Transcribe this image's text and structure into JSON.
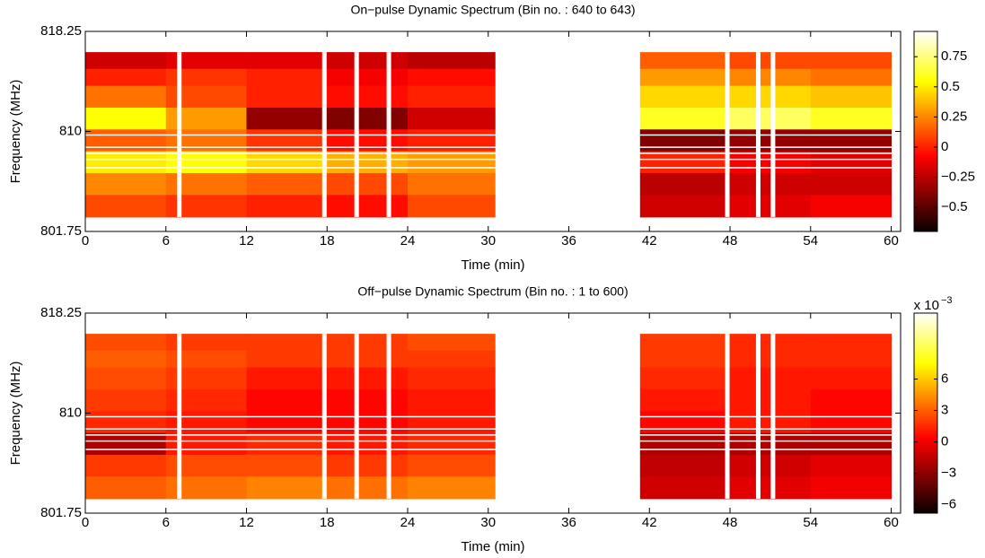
{
  "chart_data": [
    {
      "type": "heatmap",
      "title": "On−pulse Dynamic Spectrum (Bin no. : 640 to 643)",
      "xlabel": "Time (min)",
      "ylabel": "Frequency (MHz)",
      "xlim": [
        0,
        60.7
      ],
      "xticks": [
        0,
        6,
        12,
        18,
        24,
        30,
        36,
        42,
        48,
        54,
        60
      ],
      "ylim": [
        801.75,
        818.25
      ],
      "yticks": [
        801.75,
        810,
        818.25
      ],
      "x_edges": [
        0,
        6,
        12,
        18,
        24,
        30.5,
        41.3,
        48,
        54,
        60
      ],
      "y_edges": [
        802.94,
        804.8,
        806.6,
        808.4,
        810.2,
        812,
        813.8,
        815.2,
        816.54
      ],
      "z": [
        [
          0.1,
          0.05,
          0.0,
          -0.05,
          0.1,
          null,
          -0.2,
          -0.15,
          -0.1
        ],
        [
          0.25,
          0.2,
          0.15,
          0.1,
          0.2,
          null,
          -0.25,
          -0.2,
          -0.2
        ],
        [
          0.5,
          0.55,
          0.45,
          0.35,
          0.3,
          null,
          0.0,
          -0.1,
          -0.15
        ],
        [
          0.15,
          0.2,
          0.05,
          -0.05,
          0.0,
          null,
          -0.4,
          -0.35,
          -0.35
        ],
        [
          0.55,
          0.3,
          -0.35,
          -0.4,
          -0.2,
          null,
          0.6,
          0.7,
          0.6
        ],
        [
          0.2,
          0.1,
          0.0,
          -0.05,
          0.0,
          null,
          0.45,
          0.45,
          0.4
        ],
        [
          0.0,
          0.05,
          0.0,
          -0.1,
          -0.05,
          null,
          0.3,
          0.25,
          0.2
        ],
        [
          -0.2,
          -0.15,
          -0.15,
          -0.2,
          -0.25,
          null,
          0.15,
          0.1,
          0.1
        ]
      ],
      "flagged_times": [
        7.0,
        17.8,
        20.2,
        22.6,
        47.8,
        50.1,
        51.2
      ],
      "flagged_freqs": [
        809.7,
        808.7,
        808.2,
        807.7,
        807.0
      ],
      "colormap": "hot",
      "clim": [
        -0.7,
        0.96
      ],
      "cticks": [
        {
          "value": -0.5,
          "label": "−0.5"
        },
        {
          "value": -0.25,
          "label": "−0.25"
        },
        0,
        0.25,
        0.5,
        0.75
      ]
    },
    {
      "type": "heatmap",
      "title": "Off−pulse Dynamic Spectrum (Bin no. : 1 to 600)",
      "xlabel": "Time (min)",
      "ylabel": "Frequency (MHz)",
      "xlim": [
        0,
        60.7
      ],
      "xticks": [
        0,
        6,
        12,
        18,
        24,
        30,
        36,
        42,
        48,
        54,
        60
      ],
      "ylim": [
        801.75,
        818.25
      ],
      "yticks": [
        801.75,
        810,
        818.25
      ],
      "x_edges": [
        0,
        6,
        12,
        18,
        24,
        30.5,
        41.3,
        48,
        54,
        60
      ],
      "y_edges": [
        802.94,
        804.8,
        806.6,
        808.4,
        810.2,
        812,
        813.8,
        815.2,
        816.54
      ],
      "z": [
        [
          3,
          3.5,
          4,
          3.5,
          4,
          null,
          -1,
          -0.5,
          0
        ],
        [
          2,
          2.5,
          2.5,
          2,
          2.5,
          null,
          -1.5,
          -1,
          -0.5
        ],
        [
          -2,
          1,
          1.5,
          1,
          1.5,
          null,
          -2,
          -2,
          -2
        ],
        [
          1.5,
          1,
          0.5,
          0.5,
          1,
          null,
          0.5,
          1,
          0.5
        ],
        [
          2,
          1.5,
          0.5,
          0.5,
          1,
          null,
          1,
          1,
          0.5
        ],
        [
          2.5,
          2,
          1,
          1,
          1.5,
          null,
          1.5,
          1,
          1
        ],
        [
          3,
          2.5,
          2,
          2,
          2,
          null,
          2,
          1.5,
          1.5
        ],
        [
          2.5,
          2,
          2,
          2,
          2.5,
          null,
          2,
          1.5,
          1.5
        ]
      ],
      "flagged_times": [
        7.0,
        17.8,
        20.2,
        22.6,
        47.8,
        50.1,
        51.2
      ],
      "flagged_freqs": [
        809.7,
        808.7,
        808.2,
        807.7,
        807.0
      ],
      "colormap": "hot",
      "clim": [
        -6.8,
        12.3
      ],
      "cticks": [
        {
          "value": -6,
          "label": "−6"
        },
        {
          "value": -3,
          "label": "−3"
        },
        0,
        3,
        6
      ],
      "colorbar_multiplier": {
        "base": "x 10",
        "exponent": "−3"
      }
    }
  ]
}
